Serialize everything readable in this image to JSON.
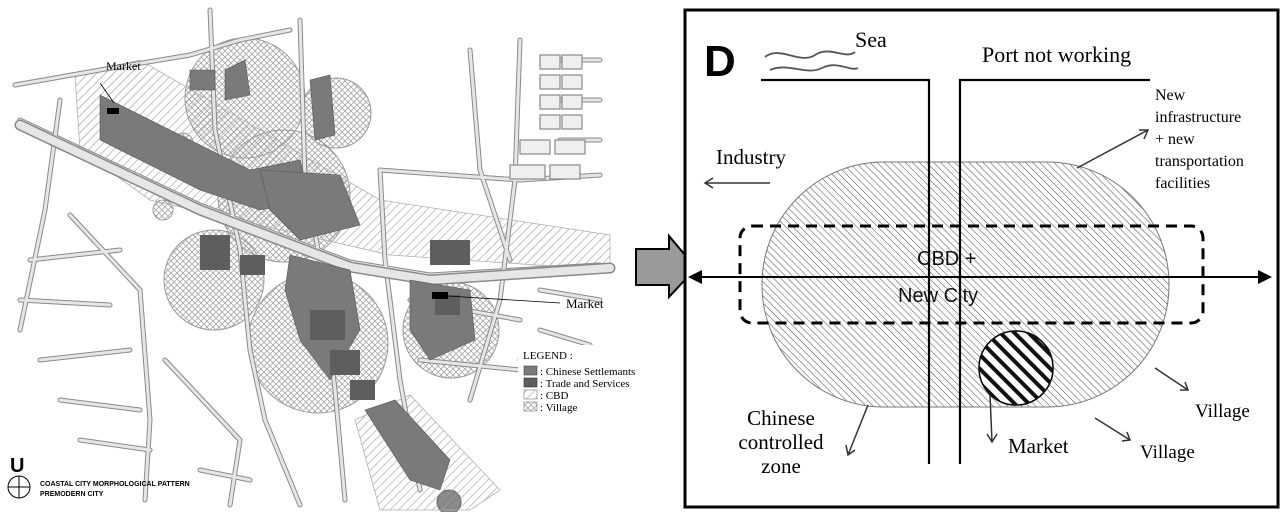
{
  "map_panel": {
    "market_label_top": "Market",
    "market_label_right": "Market",
    "legend": {
      "title": "LEGEND :",
      "items": [
        {
          "label": ": Chinese Settlemants",
          "pattern": "dark"
        },
        {
          "label": ": Trade and Services",
          "pattern": "darker"
        },
        {
          "label": ": CBD",
          "pattern": "hatch"
        },
        {
          "label": ": Village",
          "pattern": "crosshatch"
        }
      ]
    },
    "north_letter": "U",
    "caption_line1": "COASTAL CITY MORPHOLOGICAL PATTERN",
    "caption_line2": "PREMODERN CITY"
  },
  "diagram_panel": {
    "panel_letter": "D",
    "sea": "Sea",
    "port": "Port not working",
    "industry": "Industry",
    "infra_lines": [
      "New",
      "infrastructure",
      "+ new",
      "transportation",
      "facilities"
    ],
    "cbd_line1": "CBD +",
    "cbd_line2": "New City",
    "chinese_lines": [
      "Chinese",
      "controlled",
      "zone"
    ],
    "market": "Market",
    "village_1": "Village",
    "village_2": "Village"
  },
  "colors": {
    "road_fill": "#e6e6e6",
    "road_edge": "#8a8a8a",
    "settlement": "#7a7a7a",
    "trade": "#5e5e5e",
    "arrow_fill": "#9a9a9a"
  }
}
